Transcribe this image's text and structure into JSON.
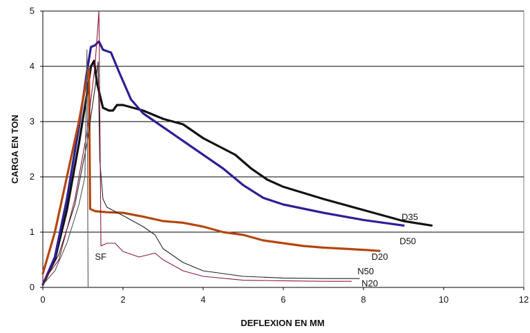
{
  "chart_data": {
    "type": "line",
    "xlabel": "DEFLEXION EN MM",
    "ylabel": "CARGA EN TON",
    "xlim": [
      0,
      12
    ],
    "ylim": [
      0,
      5
    ],
    "x_ticks": [
      "0",
      "2",
      "4",
      "6",
      "8",
      "10",
      "12"
    ],
    "y_ticks": [
      "0",
      "1",
      "2",
      "3",
      "4",
      "5"
    ],
    "grid": "horizontal",
    "legend": "none",
    "series": [
      {
        "name": "D35",
        "color": "#111111",
        "width": 3.2,
        "points": [
          [
            0,
            0.05
          ],
          [
            0.3,
            0.5
          ],
          [
            0.6,
            1.4
          ],
          [
            0.9,
            2.6
          ],
          [
            1.1,
            3.5
          ],
          [
            1.2,
            4.0
          ],
          [
            1.28,
            4.1
          ],
          [
            1.35,
            3.7
          ],
          [
            1.5,
            3.25
          ],
          [
            1.65,
            3.2
          ],
          [
            1.75,
            3.2
          ],
          [
            1.85,
            3.3
          ],
          [
            2.0,
            3.3
          ],
          [
            2.5,
            3.2
          ],
          [
            3.0,
            3.05
          ],
          [
            3.5,
            2.95
          ],
          [
            3.8,
            2.8
          ],
          [
            4.0,
            2.7
          ],
          [
            4.4,
            2.55
          ],
          [
            4.8,
            2.4
          ],
          [
            5.2,
            2.15
          ],
          [
            5.6,
            1.95
          ],
          [
            6.0,
            1.82
          ],
          [
            7.0,
            1.6
          ],
          [
            8.0,
            1.4
          ],
          [
            9.0,
            1.2
          ],
          [
            9.7,
            1.12
          ]
        ]
      },
      {
        "name": "D50",
        "color": "#2e1f96",
        "width": 3.2,
        "points": [
          [
            0,
            0.05
          ],
          [
            0.3,
            0.55
          ],
          [
            0.6,
            1.6
          ],
          [
            0.9,
            2.9
          ],
          [
            1.1,
            3.9
          ],
          [
            1.2,
            4.35
          ],
          [
            1.3,
            4.38
          ],
          [
            1.4,
            4.45
          ],
          [
            1.5,
            4.3
          ],
          [
            1.7,
            4.25
          ],
          [
            1.9,
            3.9
          ],
          [
            2.2,
            3.4
          ],
          [
            2.5,
            3.15
          ],
          [
            3.0,
            2.9
          ],
          [
            3.5,
            2.65
          ],
          [
            4.0,
            2.4
          ],
          [
            4.5,
            2.15
          ],
          [
            5.0,
            1.85
          ],
          [
            5.5,
            1.62
          ],
          [
            6.0,
            1.5
          ],
          [
            7.0,
            1.35
          ],
          [
            8.0,
            1.22
          ],
          [
            9.0,
            1.12
          ]
        ]
      },
      {
        "name": "D20",
        "color": "#b5460f",
        "width": 3.2,
        "points": [
          [
            0,
            0.25
          ],
          [
            0.3,
            1.0
          ],
          [
            0.6,
            2.0
          ],
          [
            0.9,
            3.0
          ],
          [
            1.1,
            3.8
          ],
          [
            1.15,
            3.95
          ],
          [
            1.18,
            1.42
          ],
          [
            1.3,
            1.38
          ],
          [
            1.6,
            1.36
          ],
          [
            2.0,
            1.35
          ],
          [
            2.5,
            1.28
          ],
          [
            3.0,
            1.2
          ],
          [
            3.5,
            1.17
          ],
          [
            4.0,
            1.1
          ],
          [
            4.5,
            1.0
          ],
          [
            5.0,
            0.95
          ],
          [
            5.5,
            0.85
          ],
          [
            6.0,
            0.8
          ],
          [
            6.5,
            0.75
          ],
          [
            7.0,
            0.72
          ],
          [
            7.5,
            0.7
          ],
          [
            8.0,
            0.68
          ],
          [
            8.4,
            0.66
          ]
        ]
      },
      {
        "name": "N50",
        "color": "#222222",
        "width": 1.1,
        "points": [
          [
            0,
            0.05
          ],
          [
            0.4,
            0.6
          ],
          [
            0.8,
            1.5
          ],
          [
            1.1,
            2.6
          ],
          [
            1.3,
            3.6
          ],
          [
            1.38,
            4.08
          ],
          [
            1.42,
            2.3
          ],
          [
            1.5,
            1.6
          ],
          [
            1.6,
            1.45
          ],
          [
            2.0,
            1.3
          ],
          [
            2.5,
            1.1
          ],
          [
            2.8,
            0.95
          ],
          [
            3.0,
            0.7
          ],
          [
            3.5,
            0.45
          ],
          [
            4.0,
            0.3
          ],
          [
            5.0,
            0.2
          ],
          [
            6.0,
            0.17
          ],
          [
            7.0,
            0.16
          ],
          [
            7.9,
            0.16
          ]
        ]
      },
      {
        "name": "N20",
        "color": "#8a1a3a",
        "width": 1.1,
        "points": [
          [
            0,
            0.1
          ],
          [
            0.4,
            0.5
          ],
          [
            0.8,
            1.6
          ],
          [
            1.1,
            2.8
          ],
          [
            1.3,
            4.0
          ],
          [
            1.4,
            5.0
          ],
          [
            1.45,
            0.75
          ],
          [
            1.6,
            0.8
          ],
          [
            1.8,
            0.8
          ],
          [
            2.0,
            0.65
          ],
          [
            2.4,
            0.55
          ],
          [
            2.8,
            0.62
          ],
          [
            3.0,
            0.5
          ],
          [
            3.5,
            0.3
          ],
          [
            4.0,
            0.2
          ],
          [
            5.0,
            0.13
          ],
          [
            6.0,
            0.12
          ],
          [
            7.0,
            0.11
          ],
          [
            7.7,
            0.11
          ]
        ]
      },
      {
        "name": "SF",
        "color": "#555555",
        "width": 1.1,
        "points": [
          [
            0,
            0.05
          ],
          [
            0.3,
            0.3
          ],
          [
            0.6,
            0.8
          ],
          [
            0.9,
            1.5
          ],
          [
            1.05,
            2.0
          ],
          [
            1.1,
            4.3
          ],
          [
            1.13,
            0.0
          ]
        ]
      }
    ],
    "labels": [
      {
        "text": "D35",
        "x": 8.95,
        "y": 1.22
      },
      {
        "text": "D50",
        "x": 8.9,
        "y": 0.78
      },
      {
        "text": "D20",
        "x": 8.2,
        "y": 0.5
      },
      {
        "text": "SF",
        "x": 1.3,
        "y": 0.5
      },
      {
        "text": "N50",
        "x": 7.85,
        "y": 0.24
      },
      {
        "text": "N20",
        "x": 7.95,
        "y": 0.02
      }
    ]
  }
}
